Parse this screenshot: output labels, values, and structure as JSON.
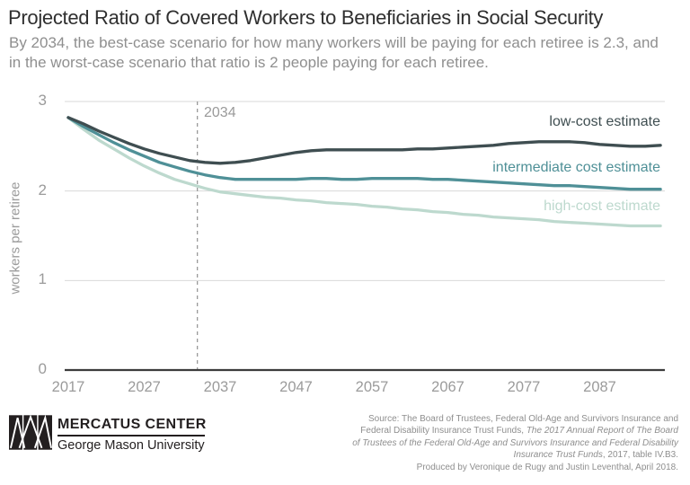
{
  "chart_data": {
    "type": "line",
    "title": "Projected Ratio of Covered Workers to Beneficiaries in Social Security",
    "subtitle": "By 2034, the best-case scenario for how many workers will be paying for each retiree is 2.3, and in the worst-case scenario that ratio is 2 people paying for each retiree.",
    "xlabel": "",
    "ylabel": "workers per retiree",
    "xlim": [
      2017,
      2095
    ],
    "ylim": [
      0,
      3
    ],
    "x_ticks": [
      "2017",
      "2027",
      "2037",
      "2047",
      "2057",
      "2067",
      "2077",
      "2087"
    ],
    "y_ticks": [
      "0",
      "1",
      "2",
      "3"
    ],
    "grid": "horizontal",
    "legend_position": "right-inline-labels",
    "annotation": {
      "label": "2034",
      "x": 2034,
      "style": "vertical-dashed-line"
    },
    "series": [
      {
        "name": "low-cost estimate",
        "color": "#3f4e51",
        "points": [
          [
            2017,
            2.82
          ],
          [
            2019,
            2.75
          ],
          [
            2021,
            2.67
          ],
          [
            2023,
            2.6
          ],
          [
            2025,
            2.53
          ],
          [
            2027,
            2.47
          ],
          [
            2029,
            2.42
          ],
          [
            2031,
            2.38
          ],
          [
            2033,
            2.34
          ],
          [
            2035,
            2.32
          ],
          [
            2037,
            2.31
          ],
          [
            2039,
            2.32
          ],
          [
            2041,
            2.34
          ],
          [
            2043,
            2.37
          ],
          [
            2045,
            2.4
          ],
          [
            2047,
            2.43
          ],
          [
            2049,
            2.45
          ],
          [
            2051,
            2.46
          ],
          [
            2053,
            2.46
          ],
          [
            2055,
            2.46
          ],
          [
            2057,
            2.46
          ],
          [
            2059,
            2.46
          ],
          [
            2061,
            2.46
          ],
          [
            2063,
            2.47
          ],
          [
            2065,
            2.47
          ],
          [
            2067,
            2.48
          ],
          [
            2069,
            2.49
          ],
          [
            2071,
            2.5
          ],
          [
            2073,
            2.51
          ],
          [
            2075,
            2.53
          ],
          [
            2077,
            2.54
          ],
          [
            2079,
            2.55
          ],
          [
            2081,
            2.55
          ],
          [
            2083,
            2.55
          ],
          [
            2085,
            2.54
          ],
          [
            2087,
            2.52
          ],
          [
            2089,
            2.51
          ],
          [
            2091,
            2.5
          ],
          [
            2093,
            2.5
          ],
          [
            2095,
            2.51
          ]
        ]
      },
      {
        "name": "intermediate cost estimate",
        "color": "#4f9097",
        "points": [
          [
            2017,
            2.82
          ],
          [
            2019,
            2.72
          ],
          [
            2021,
            2.63
          ],
          [
            2023,
            2.54
          ],
          [
            2025,
            2.46
          ],
          [
            2027,
            2.39
          ],
          [
            2029,
            2.32
          ],
          [
            2031,
            2.27
          ],
          [
            2033,
            2.22
          ],
          [
            2035,
            2.18
          ],
          [
            2037,
            2.15
          ],
          [
            2039,
            2.13
          ],
          [
            2041,
            2.13
          ],
          [
            2043,
            2.13
          ],
          [
            2045,
            2.13
          ],
          [
            2047,
            2.13
          ],
          [
            2049,
            2.14
          ],
          [
            2051,
            2.14
          ],
          [
            2053,
            2.13
          ],
          [
            2055,
            2.13
          ],
          [
            2057,
            2.14
          ],
          [
            2059,
            2.14
          ],
          [
            2061,
            2.14
          ],
          [
            2063,
            2.14
          ],
          [
            2065,
            2.13
          ],
          [
            2067,
            2.13
          ],
          [
            2069,
            2.12
          ],
          [
            2071,
            2.11
          ],
          [
            2073,
            2.1
          ],
          [
            2075,
            2.09
          ],
          [
            2077,
            2.08
          ],
          [
            2079,
            2.07
          ],
          [
            2081,
            2.06
          ],
          [
            2083,
            2.06
          ],
          [
            2085,
            2.05
          ],
          [
            2087,
            2.04
          ],
          [
            2089,
            2.03
          ],
          [
            2091,
            2.02
          ],
          [
            2093,
            2.02
          ],
          [
            2095,
            2.02
          ]
        ]
      },
      {
        "name": "high-cost estimate",
        "color": "#bdd9ce",
        "points": [
          [
            2017,
            2.82
          ],
          [
            2019,
            2.69
          ],
          [
            2021,
            2.57
          ],
          [
            2023,
            2.47
          ],
          [
            2025,
            2.37
          ],
          [
            2027,
            2.28
          ],
          [
            2029,
            2.2
          ],
          [
            2031,
            2.13
          ],
          [
            2033,
            2.08
          ],
          [
            2035,
            2.03
          ],
          [
            2037,
            1.99
          ],
          [
            2039,
            1.97
          ],
          [
            2041,
            1.95
          ],
          [
            2043,
            1.93
          ],
          [
            2045,
            1.92
          ],
          [
            2047,
            1.9
          ],
          [
            2049,
            1.89
          ],
          [
            2051,
            1.87
          ],
          [
            2053,
            1.86
          ],
          [
            2055,
            1.85
          ],
          [
            2057,
            1.83
          ],
          [
            2059,
            1.82
          ],
          [
            2061,
            1.8
          ],
          [
            2063,
            1.79
          ],
          [
            2065,
            1.77
          ],
          [
            2067,
            1.76
          ],
          [
            2069,
            1.74
          ],
          [
            2071,
            1.73
          ],
          [
            2073,
            1.71
          ],
          [
            2075,
            1.7
          ],
          [
            2077,
            1.69
          ],
          [
            2079,
            1.68
          ],
          [
            2081,
            1.66
          ],
          [
            2083,
            1.65
          ],
          [
            2085,
            1.64
          ],
          [
            2087,
            1.63
          ],
          [
            2089,
            1.62
          ],
          [
            2091,
            1.61
          ],
          [
            2093,
            1.61
          ],
          [
            2095,
            1.61
          ]
        ]
      }
    ],
    "style_colors": {
      "gridline": "#d9d9d9",
      "axis": "#3c3c3c",
      "dashed_line": "#9a9a9a",
      "tick_text": "#9b9b9b"
    }
  },
  "footer": {
    "logo": {
      "org": "MERCATUS CENTER",
      "sub": "George Mason University"
    },
    "source": {
      "prefix": "Source: The Board of Trustees, Federal Old-Age and Survivors Insurance and Federal Disability Insurance Trust Funds, ",
      "italic": "The 2017 Annual Report of The Board of Trustees of the Federal Old-Age and Survivors Insurance and Federal Disability Insurance Trust Funds",
      "suffix": ", 2017, table IV.B3.",
      "produced": "Produced by Veronique de Rugy and Justin Leventhal, April 2018."
    }
  }
}
